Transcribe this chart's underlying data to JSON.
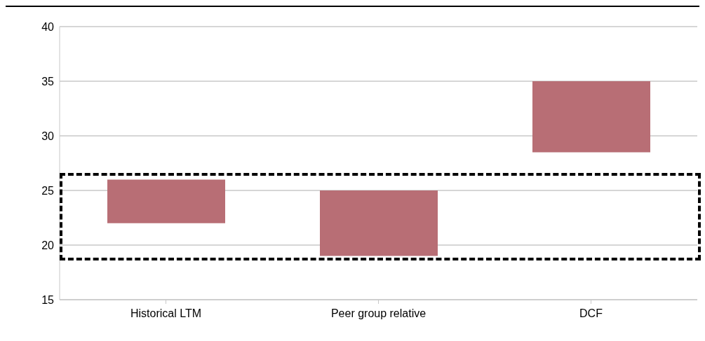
{
  "chart_data": {
    "type": "bar",
    "categories": [
      "Historical LTM",
      "Peer group relative",
      "DCF"
    ],
    "values": [
      4,
      6,
      6.5
    ],
    "base": [
      22,
      19,
      28.5
    ],
    "color": "#b86e75",
    "ylim": [
      15,
      40
    ],
    "yticks": [
      15,
      20,
      25,
      30,
      35,
      40
    ],
    "grid": "y"
  }
}
